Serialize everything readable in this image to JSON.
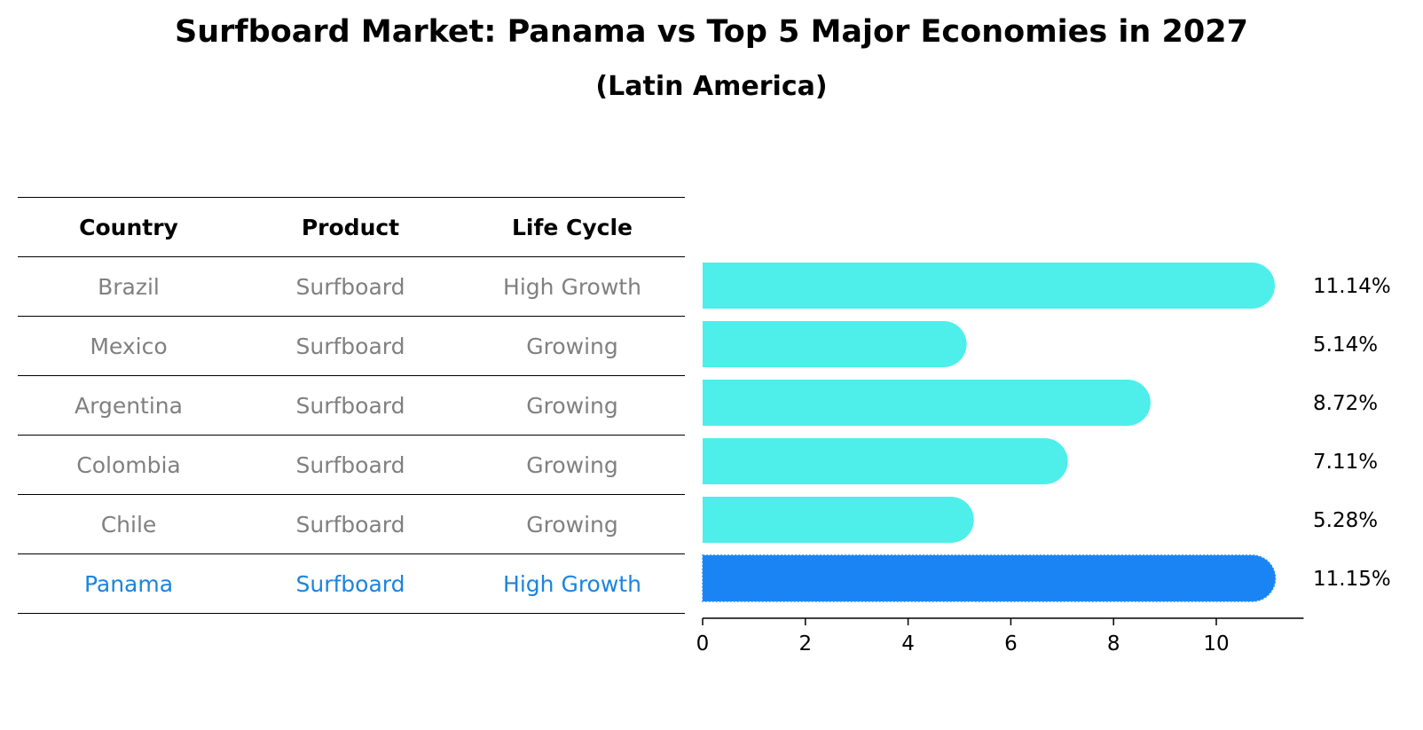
{
  "title": "Surfboard Market: Panama vs Top 5 Major Economies in 2027",
  "subtitle": "(Latin America)",
  "table": {
    "headers": [
      "Country",
      "Product",
      "Life Cycle"
    ],
    "rows": [
      [
        "Brazil",
        "Surfboard",
        "High Growth"
      ],
      [
        "Mexico",
        "Surfboard",
        "Growing"
      ],
      [
        "Argentina",
        "Surfboard",
        "Growing"
      ],
      [
        "Colombia",
        "Surfboard",
        "Growing"
      ],
      [
        "Chile",
        "Surfboard",
        "Growing"
      ],
      [
        "Panama",
        "Surfboard",
        "High Growth"
      ]
    ]
  },
  "colors": {
    "bar": "#4eeeea",
    "highlight_bar": "#1a84f4",
    "highlight_text": "#1a84e0",
    "muted_text": "#808080"
  },
  "chart_data": {
    "type": "bar",
    "orientation": "horizontal",
    "categories": [
      "Brazil",
      "Mexico",
      "Argentina",
      "Colombia",
      "Chile",
      "Panama"
    ],
    "values": [
      11.14,
      5.14,
      8.72,
      7.11,
      5.28,
      11.15
    ],
    "value_labels": [
      "11.14%",
      "5.14%",
      "8.72%",
      "7.11%",
      "5.28%",
      "11.15%"
    ],
    "highlight": "Panama",
    "xticks": [
      0,
      2,
      4,
      6,
      8,
      10
    ],
    "xlim": [
      0,
      11.7
    ],
    "title": "Surfboard Market: Panama vs Top 5 Major Economies in 2027",
    "xlabel": "",
    "ylabel": ""
  }
}
